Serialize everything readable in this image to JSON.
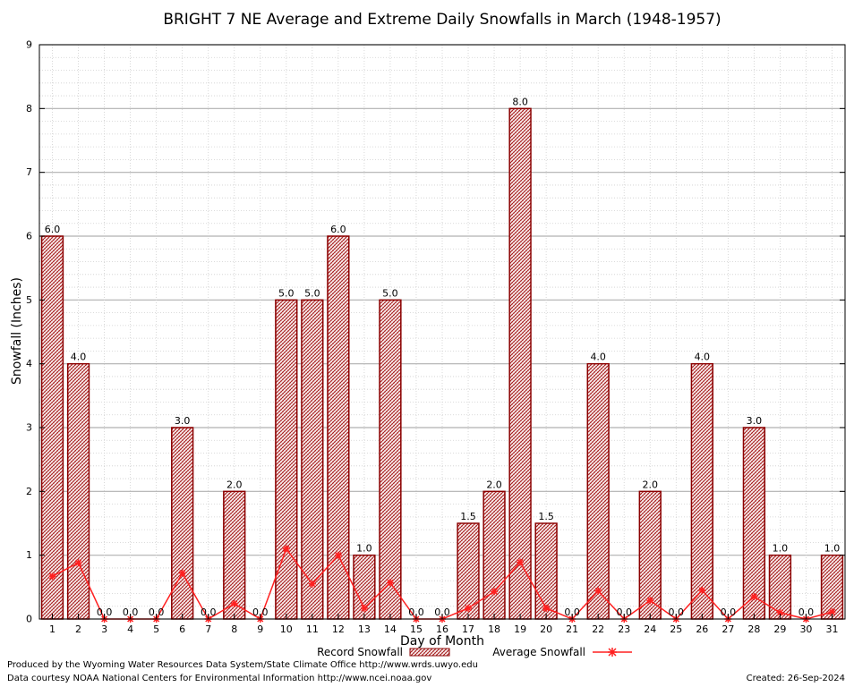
{
  "chart_data": {
    "type": "bar",
    "title": "BRIGHT 7 NE Average and Extreme Daily Snowfalls in March (1948-1957)",
    "xlabel": "Day of Month",
    "ylabel": "Snowfall (Inches)",
    "ylim": [
      0,
      9
    ],
    "yticks": [
      "0",
      "1",
      "2",
      "3",
      "4",
      "5",
      "6",
      "7",
      "8",
      "9"
    ],
    "categories": [
      "1",
      "2",
      "3",
      "4",
      "5",
      "6",
      "7",
      "8",
      "9",
      "10",
      "11",
      "12",
      "13",
      "14",
      "15",
      "16",
      "17",
      "18",
      "19",
      "20",
      "21",
      "22",
      "23",
      "24",
      "25",
      "26",
      "27",
      "28",
      "29",
      "30",
      "31"
    ],
    "grid": true,
    "legend_position": "bottom",
    "series": [
      {
        "name": "Record Snowfall",
        "kind": "bar",
        "color": "#8b0000",
        "values": [
          6.0,
          4.0,
          0.0,
          0.0,
          0.0,
          3.0,
          0.0,
          2.0,
          0.0,
          5.0,
          5.0,
          6.0,
          1.0,
          5.0,
          0.0,
          0.0,
          1.5,
          2.0,
          8.0,
          1.5,
          0.0,
          4.0,
          0.0,
          2.0,
          0.0,
          4.0,
          0.0,
          3.0,
          1.0,
          0.0,
          1.0
        ],
        "labels": [
          "6.0",
          "4.0",
          "0.0",
          "0.0",
          "0.0",
          "3.0",
          "0.0",
          "2.0",
          "0.0",
          "5.0",
          "5.0",
          "6.0",
          "1.0",
          "5.0",
          "0.0",
          "0.0",
          "1.5",
          "2.0",
          "8.0",
          "1.5",
          "0.0",
          "4.0",
          "0.0",
          "2.0",
          "0.0",
          "4.0",
          "0.0",
          "3.0",
          "1.0",
          "0.0",
          "1.0"
        ]
      },
      {
        "name": "Average Snowfall",
        "kind": "line",
        "color": "#ff2020",
        "values": [
          0.67,
          0.88,
          0.0,
          0.0,
          0.0,
          0.72,
          0.0,
          0.24,
          0.0,
          1.1,
          0.55,
          1.0,
          0.17,
          0.57,
          0.0,
          0.0,
          0.17,
          0.43,
          0.89,
          0.17,
          0.0,
          0.44,
          0.0,
          0.29,
          0.0,
          0.45,
          0.0,
          0.35,
          0.1,
          0.0,
          0.11
        ]
      }
    ]
  },
  "footer": {
    "produced_by": "Produced by the Wyoming Water Resources Data System/State Climate Office http://www.wrds.uwyo.edu",
    "courtesy": "Data courtesy NOAA National Centers for Environmental Information http://www.ncei.noaa.gov",
    "created": "Created:  26-Sep-2024"
  }
}
